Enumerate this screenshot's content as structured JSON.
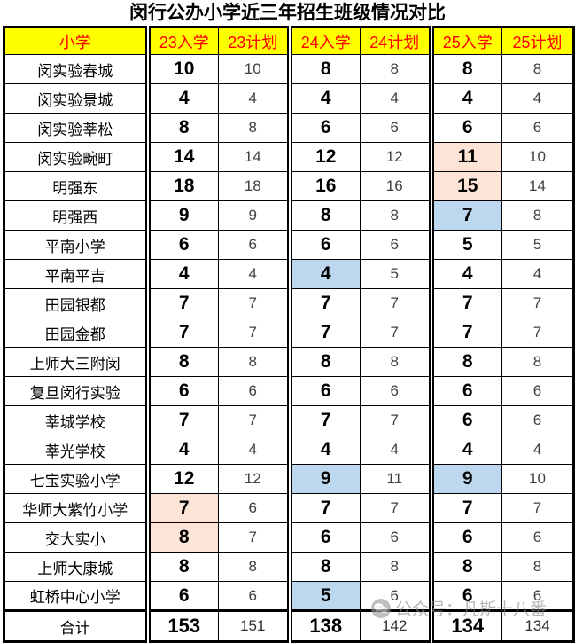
{
  "title": "闵行公办小学近三年招生班级情况对比",
  "colors": {
    "header_bg": "#FFFF00",
    "header_text": "#FF0000",
    "pink": "#FCE4D6",
    "blue": "#BDD7EE"
  },
  "table": {
    "columns": [
      "小学",
      "23入学",
      "23计划",
      "24入学",
      "24计划",
      "25入学",
      "25计划"
    ],
    "rows": [
      {
        "school": "闵实验春城",
        "values": [
          10,
          10,
          8,
          8,
          8,
          8
        ],
        "hl": {}
      },
      {
        "school": "闵实验景城",
        "values": [
          4,
          4,
          4,
          4,
          4,
          4
        ],
        "hl": {}
      },
      {
        "school": "闵实验莘松",
        "values": [
          8,
          8,
          6,
          6,
          6,
          6
        ],
        "hl": {}
      },
      {
        "school": "闵实验畹町",
        "values": [
          14,
          14,
          12,
          12,
          11,
          10
        ],
        "hl": {
          "4": "pink"
        }
      },
      {
        "school": "明强东",
        "values": [
          18,
          18,
          16,
          16,
          15,
          14
        ],
        "hl": {
          "4": "pink"
        }
      },
      {
        "school": "明强西",
        "values": [
          9,
          9,
          8,
          8,
          7,
          8
        ],
        "hl": {
          "4": "blue"
        }
      },
      {
        "school": "平南小学",
        "values": [
          6,
          6,
          6,
          6,
          5,
          5
        ],
        "hl": {}
      },
      {
        "school": "平南平吉",
        "values": [
          4,
          4,
          4,
          5,
          4,
          4
        ],
        "hl": {
          "2": "blue"
        }
      },
      {
        "school": "田园银都",
        "values": [
          7,
          7,
          7,
          7,
          7,
          7
        ],
        "hl": {}
      },
      {
        "school": "田园金都",
        "values": [
          7,
          7,
          7,
          7,
          7,
          7
        ],
        "hl": {}
      },
      {
        "school": "上师大三附闵",
        "values": [
          8,
          8,
          8,
          8,
          8,
          8
        ],
        "hl": {}
      },
      {
        "school": "复旦闵行实验",
        "values": [
          6,
          6,
          6,
          6,
          6,
          6
        ],
        "hl": {}
      },
      {
        "school": "莘城学校",
        "values": [
          7,
          7,
          7,
          7,
          6,
          6
        ],
        "hl": {}
      },
      {
        "school": "莘光学校",
        "values": [
          4,
          4,
          4,
          4,
          4,
          4
        ],
        "hl": {}
      },
      {
        "school": "七宝实验小学",
        "values": [
          12,
          12,
          9,
          11,
          9,
          10
        ],
        "hl": {
          "2": "blue",
          "4": "blue"
        }
      },
      {
        "school": "华师大紫竹小学",
        "values": [
          7,
          6,
          7,
          7,
          7,
          7
        ],
        "hl": {
          "0": "pink"
        }
      },
      {
        "school": "交大实小",
        "values": [
          8,
          7,
          6,
          6,
          6,
          6
        ],
        "hl": {
          "0": "pink"
        }
      },
      {
        "school": "上师大康城",
        "values": [
          8,
          8,
          8,
          8,
          8,
          8
        ],
        "hl": {}
      },
      {
        "school": "虹桥中心小学",
        "values": [
          6,
          6,
          5,
          6,
          6,
          6
        ],
        "hl": {
          "2": "blue"
        }
      }
    ],
    "total": {
      "label": "合计",
      "values": [
        153,
        151,
        138,
        142,
        134,
        134
      ]
    }
  },
  "watermark": {
    "icon": "wechat-icon",
    "text": "公众号：凡斯十八番"
  }
}
